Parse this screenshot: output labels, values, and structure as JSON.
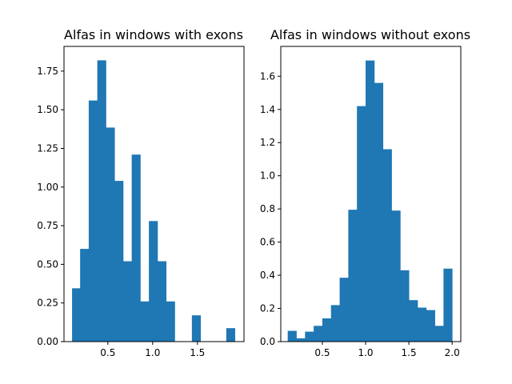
{
  "colors": {
    "bar": "#1f77b4",
    "axis": "#000000",
    "background": "#ffffff"
  },
  "chart_data": [
    {
      "type": "bar",
      "title": "Alfas in windows with exons",
      "xlabel": "",
      "ylabel": "",
      "grid": false,
      "xlim": [
        0.01,
        2.02
      ],
      "ylim": [
        0,
        1.91
      ],
      "xticks": [
        0.5,
        1.0,
        1.5
      ],
      "xtick_labels": [
        "0.5",
        "1.0",
        "1.5"
      ],
      "yticks": [
        0,
        0.25,
        0.5,
        0.75,
        1.0,
        1.25,
        1.5,
        1.75
      ],
      "ytick_labels": [
        "0.00",
        "0.25",
        "0.50",
        "0.75",
        "1.00",
        "1.25",
        "1.50",
        "1.75"
      ],
      "bin_edges": [
        0.1,
        0.19,
        0.286,
        0.382,
        0.478,
        0.574,
        0.67,
        0.766,
        0.862,
        0.958,
        1.054,
        1.15,
        1.246,
        1.342,
        1.438,
        1.534,
        1.63,
        1.726,
        1.822,
        1.918
      ],
      "values": [
        0.345,
        0.6,
        1.56,
        1.82,
        1.385,
        1.04,
        0.52,
        1.21,
        0.26,
        0.78,
        0.52,
        0.26,
        0,
        0,
        0.17,
        0,
        0,
        0,
        0.087
      ]
    },
    {
      "type": "bar",
      "title": "Alfas in windows without exons",
      "xlabel": "",
      "ylabel": "",
      "grid": false,
      "xlim": [
        0.02,
        2.1
      ],
      "ylim": [
        0,
        1.78
      ],
      "xticks": [
        0.5,
        1.0,
        1.5,
        2.0
      ],
      "xtick_labels": [
        "0.5",
        "1.0",
        "1.5",
        "2.0"
      ],
      "yticks": [
        0,
        0.2,
        0.4,
        0.6,
        0.8,
        1.0,
        1.2,
        1.4,
        1.6
      ],
      "ytick_labels": [
        "0.0",
        "0.2",
        "0.4",
        "0.6",
        "0.8",
        "1.0",
        "1.2",
        "1.4",
        "1.6"
      ],
      "bin_edges": [
        0.1,
        0.2,
        0.3,
        0.4,
        0.5,
        0.6,
        0.7,
        0.8,
        0.9,
        1.0,
        1.1,
        1.2,
        1.3,
        1.4,
        1.5,
        1.6,
        1.7,
        1.8,
        1.9,
        2.0
      ],
      "values": [
        0.065,
        0.02,
        0.06,
        0.095,
        0.14,
        0.22,
        0.385,
        0.795,
        1.42,
        1.695,
        1.56,
        1.16,
        0.79,
        0.43,
        0.25,
        0.205,
        0.19,
        0.095,
        0.44
      ]
    }
  ]
}
